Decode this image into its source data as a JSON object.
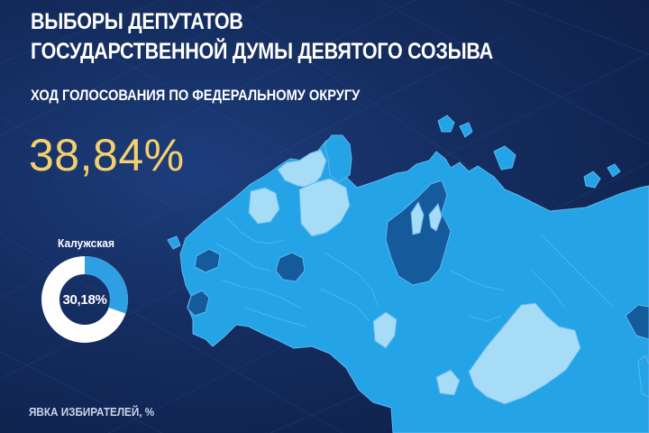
{
  "header": {
    "title_line1": "ВЫБОРЫ ДЕПУТАТОВ",
    "title_line2": "ГОСУДАРСТВЕННОЙ ДУМЫ ДЕВЯТОГО СОЗЫВА",
    "subtitle": "ХОД ГОЛОСОВАНИЯ ПО ФЕДЕРАЛЬНОМУ ОКРУГУ"
  },
  "national": {
    "turnout": "38,84%"
  },
  "region": {
    "name": "Калужская",
    "turnout_label": "30,18%",
    "turnout_fraction": 0.3018
  },
  "footer": {
    "caption": "ЯВКА ИЗБИРАТЕЛЕЙ, %"
  },
  "colors": {
    "background": "#142c5e",
    "gold": "#f3cf6e",
    "map_main": "#24a3e6",
    "map_light": "#a6dcf6",
    "map_dark": "#155a9a",
    "donut_fill": "#2f9fe4",
    "donut_track": "#ffffff"
  }
}
